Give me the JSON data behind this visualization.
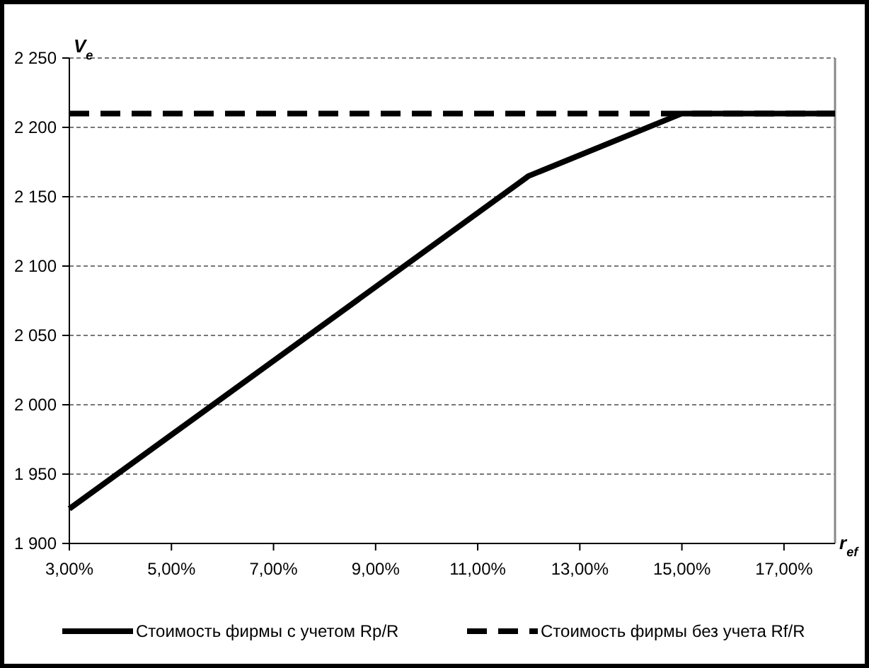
{
  "chart_data": {
    "type": "line",
    "xlabel": "r$_{ef}$",
    "ylabel": "V$_{e}$",
    "xlim": [
      3,
      18
    ],
    "ylim": [
      1900,
      2250
    ],
    "xticks": [
      {
        "value": 3,
        "label": "3,00%"
      },
      {
        "value": 5,
        "label": "5,00%"
      },
      {
        "value": 7,
        "label": "7,00%"
      },
      {
        "value": 9,
        "label": "9,00%"
      },
      {
        "value": 11,
        "label": "11,00%"
      },
      {
        "value": 13,
        "label": "13,00%"
      },
      {
        "value": 15,
        "label": "15,00%"
      },
      {
        "value": 17,
        "label": "17,00%"
      }
    ],
    "yticks": [
      {
        "value": 1900,
        "label": "1 900"
      },
      {
        "value": 1950,
        "label": "1 950"
      },
      {
        "value": 2000,
        "label": "2 000"
      },
      {
        "value": 2050,
        "label": "2 050"
      },
      {
        "value": 2100,
        "label": "2 100"
      },
      {
        "value": 2150,
        "label": "2 150"
      },
      {
        "value": 2200,
        "label": "2 200"
      },
      {
        "value": 2250,
        "label": "2 250"
      }
    ],
    "grid": "y",
    "legend": "bottom",
    "series": [
      {
        "name": "Стоимость фирмы с учетом Rp/R",
        "color": "#000000",
        "line_style": "solid",
        "x": [
          3,
          12,
          15,
          18
        ],
        "values": [
          1925,
          2165,
          2210,
          2210
        ]
      },
      {
        "name": "Стоимость фирмы без учета Rf/R",
        "color": "#000000",
        "line_style": "dashed",
        "x": [
          3,
          18
        ],
        "values": [
          2210,
          2210
        ]
      }
    ]
  }
}
